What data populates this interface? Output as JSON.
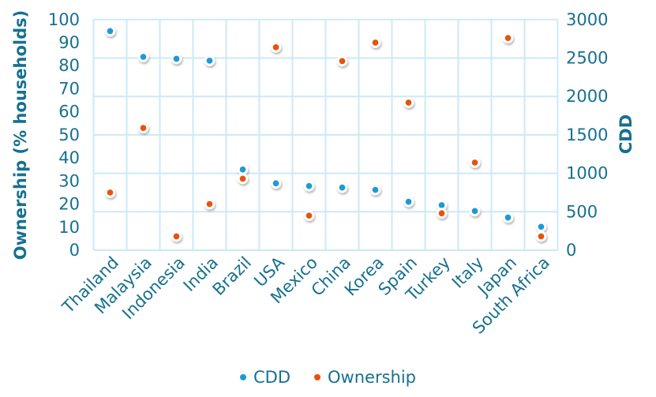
{
  "chart_data": {
    "type": "scatter",
    "title": "",
    "categories": [
      "Thailand",
      "Malaysia",
      "Indonesia",
      "India",
      "Brazil",
      "USA",
      "Mexico",
      "China",
      "Korea",
      "Spain",
      "Turkey",
      "Italy",
      "Japan",
      "South Africa"
    ],
    "series": [
      {
        "name": "CDD",
        "axis": "right",
        "color": "#1C9BD4",
        "values": [
          2850,
          2515,
          2490,
          2465,
          1050,
          870,
          835,
          815,
          785,
          630,
          585,
          510,
          425,
          305
        ]
      },
      {
        "name": "Ownership",
        "axis": "left",
        "color": "#E6520C",
        "values": [
          25,
          53,
          6,
          20,
          31,
          88,
          15,
          82,
          90,
          64,
          16,
          38,
          92,
          6
        ]
      }
    ],
    "left_axis": {
      "title": "Ownership (% households)",
      "min": 0,
      "max": 100,
      "ticks": [
        0,
        10,
        20,
        30,
        40,
        50,
        60,
        70,
        80,
        90,
        100
      ]
    },
    "right_axis": {
      "title": "CDD",
      "min": 0,
      "max": 3000,
      "ticks": [
        0,
        500,
        1000,
        1500,
        2000,
        2500,
        3000
      ]
    },
    "legend": {
      "position": "bottom",
      "items": [
        "CDD",
        "Ownership"
      ]
    },
    "grid": "on",
    "styles": {
      "text_color": "#17708F",
      "grid_color": "#CBEAF7",
      "marker_edge": "#FFFFFF",
      "background": "#FFFFFF"
    }
  }
}
